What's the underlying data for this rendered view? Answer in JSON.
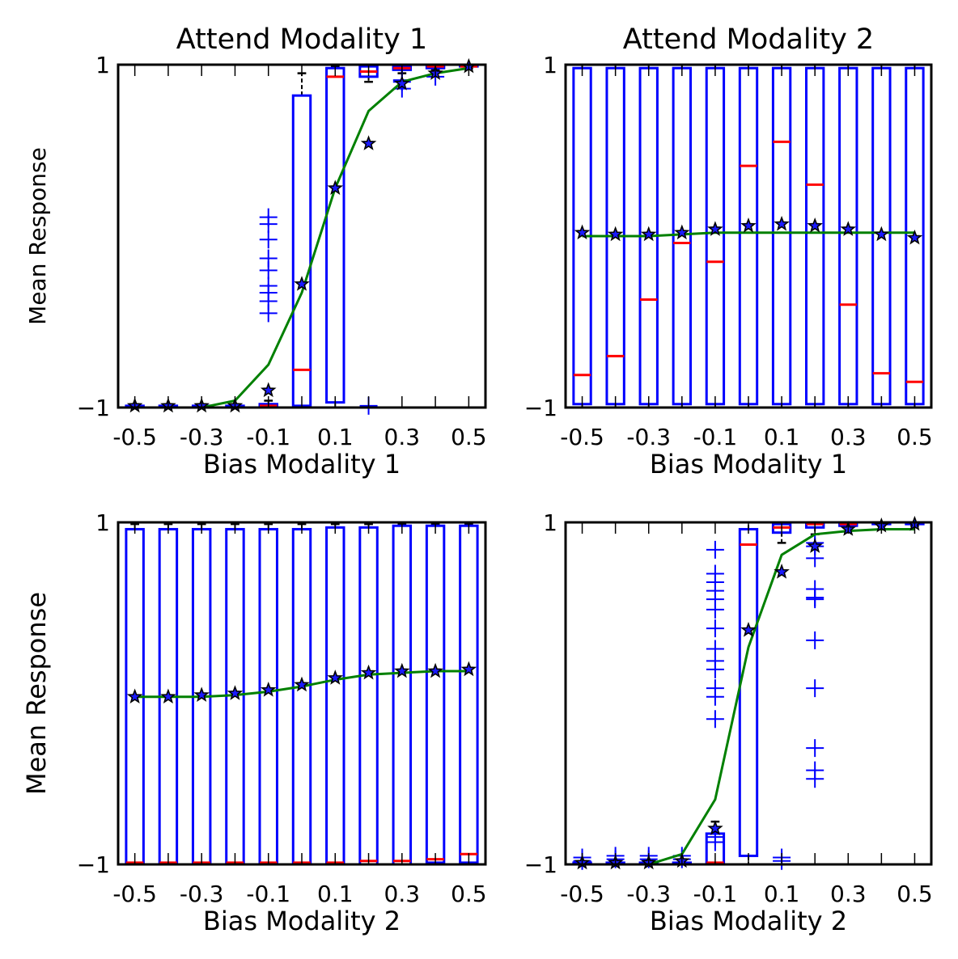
{
  "figure": {
    "colors": {
      "box": "#0000ff",
      "median": "#ff0000",
      "mean_marker": "#000000",
      "fit_line": "#008000",
      "axes": "#000000"
    }
  },
  "chart_data": [
    {
      "type": "box",
      "title": "Attend Modality 1",
      "xlabel": "Bias Modality 1",
      "ylabel": "Mean Response",
      "ylim": [
        -1,
        1
      ],
      "xlim": [
        -0.55,
        0.55
      ],
      "ytick_labels": [
        "−1",
        "1"
      ],
      "xtick_labels": [
        "-0.5",
        "-0.3",
        "-0.1",
        "0.1",
        "0.3",
        "0.5"
      ],
      "x": [
        -0.5,
        -0.4,
        -0.3,
        -0.2,
        -0.1,
        0.0,
        0.1,
        0.2,
        0.3,
        0.4,
        0.5
      ],
      "boxes": [
        {
          "x": -0.5,
          "q1": -1.0,
          "q3": -0.99,
          "median": -1.0,
          "whisker_low": -1.0,
          "whisker_high": -0.99
        },
        {
          "x": -0.4,
          "q1": -1.0,
          "q3": -0.99,
          "median": -1.0,
          "whisker_low": -1.0,
          "whisker_high": -0.99
        },
        {
          "x": -0.3,
          "q1": -1.0,
          "q3": -0.99,
          "median": -1.0,
          "whisker_low": -1.0,
          "whisker_high": -0.99
        },
        {
          "x": -0.2,
          "q1": -1.0,
          "q3": -0.99,
          "median": -1.0,
          "whisker_low": -1.0,
          "whisker_high": -0.99
        },
        {
          "x": -0.1,
          "q1": -1.0,
          "q3": -0.98,
          "median": -0.99,
          "whisker_low": -1.0,
          "whisker_high": -0.96
        },
        {
          "x": 0.0,
          "q1": -0.99,
          "q3": 0.82,
          "median": -0.78,
          "whisker_low": -1.0,
          "whisker_high": 0.95
        },
        {
          "x": 0.1,
          "q1": -0.97,
          "q3": 0.98,
          "median": 0.93,
          "whisker_low": -1.0,
          "whisker_high": 0.99
        },
        {
          "x": 0.2,
          "q1": 0.93,
          "q3": 0.99,
          "median": 0.96,
          "whisker_low": 0.9,
          "whisker_high": 1.0
        },
        {
          "x": 0.3,
          "q1": 0.97,
          "q3": 0.99,
          "median": 0.98,
          "whisker_low": 0.95,
          "whisker_high": 1.0
        },
        {
          "x": 0.4,
          "q1": 0.98,
          "q3": 1.0,
          "median": 0.99,
          "whisker_low": 0.97,
          "whisker_high": 1.0
        },
        {
          "x": 0.5,
          "q1": 0.99,
          "q3": 1.0,
          "median": 0.99,
          "whisker_low": 0.98,
          "whisker_high": 1.0
        }
      ],
      "outliers": [
        {
          "x": -0.1,
          "y": [
            0.11,
            0.07,
            -0.02,
            -0.13,
            -0.2,
            -0.29,
            -0.33,
            -0.38,
            -0.45
          ]
        },
        {
          "x": 0.2,
          "y": [
            -0.99
          ]
        },
        {
          "x": 0.3,
          "y": [
            0.91,
            0.86,
            0.9
          ]
        },
        {
          "x": 0.4,
          "y": [
            0.93
          ]
        }
      ],
      "means": [
        -0.99,
        -0.99,
        -0.99,
        -0.99,
        -0.9,
        -0.28,
        0.28,
        0.54,
        0.89,
        0.95,
        0.99
      ],
      "fit_line": [
        -1.0,
        -1.0,
        -1.0,
        -0.96,
        -0.75,
        -0.33,
        0.28,
        0.73,
        0.9,
        0.95,
        0.98
      ]
    },
    {
      "type": "box",
      "title": "Attend Modality 2",
      "xlabel": "Bias Modality 1",
      "ylabel": "",
      "ylim": [
        -1,
        1
      ],
      "xlim": [
        -0.55,
        0.55
      ],
      "ytick_labels": [
        "−1",
        "1"
      ],
      "xtick_labels": [
        "-0.5",
        "-0.3",
        "-0.1",
        "0.1",
        "0.3",
        "0.5"
      ],
      "x": [
        -0.5,
        -0.4,
        -0.3,
        -0.2,
        -0.1,
        0.0,
        0.1,
        0.2,
        0.3,
        0.4,
        0.5
      ],
      "boxes": [
        {
          "x": -0.5,
          "q1": -0.98,
          "q3": 0.98,
          "median": -0.81,
          "whisker_low": -1.0,
          "whisker_high": 1.0
        },
        {
          "x": -0.4,
          "q1": -0.98,
          "q3": 0.98,
          "median": -0.7,
          "whisker_low": -1.0,
          "whisker_high": 1.0
        },
        {
          "x": -0.3,
          "q1": -0.98,
          "q3": 0.98,
          "median": -0.37,
          "whisker_low": -1.0,
          "whisker_high": 1.0
        },
        {
          "x": -0.2,
          "q1": -0.98,
          "q3": 0.98,
          "median": -0.04,
          "whisker_low": -1.0,
          "whisker_high": 1.0
        },
        {
          "x": -0.1,
          "q1": -0.98,
          "q3": 0.98,
          "median": -0.15,
          "whisker_low": -1.0,
          "whisker_high": 1.0
        },
        {
          "x": 0.0,
          "q1": -0.98,
          "q3": 0.98,
          "median": 0.41,
          "whisker_low": -1.0,
          "whisker_high": 1.0
        },
        {
          "x": 0.1,
          "q1": -0.98,
          "q3": 0.98,
          "median": 0.55,
          "whisker_low": -1.0,
          "whisker_high": 1.0
        },
        {
          "x": 0.2,
          "q1": -0.98,
          "q3": 0.98,
          "median": 0.3,
          "whisker_low": -1.0,
          "whisker_high": 1.0
        },
        {
          "x": 0.3,
          "q1": -0.98,
          "q3": 0.98,
          "median": -0.4,
          "whisker_low": -1.0,
          "whisker_high": 1.0
        },
        {
          "x": 0.4,
          "q1": -0.98,
          "q3": 0.98,
          "median": -0.8,
          "whisker_low": -1.0,
          "whisker_high": 1.0
        },
        {
          "x": 0.5,
          "q1": -0.98,
          "q3": 0.98,
          "median": -0.85,
          "whisker_low": -1.0,
          "whisker_high": 1.0
        }
      ],
      "outliers": [],
      "means": [
        0.02,
        0.01,
        0.01,
        0.02,
        0.04,
        0.06,
        0.07,
        0.06,
        0.04,
        0.01,
        -0.01
      ],
      "fit_line": [
        0.0,
        0.0,
        0.0,
        0.01,
        0.02,
        0.02,
        0.02,
        0.02,
        0.02,
        0.02,
        0.02
      ]
    },
    {
      "type": "box",
      "title": "",
      "xlabel": "Bias Modality 2",
      "ylabel": "Mean Response",
      "ylim": [
        -1,
        1
      ],
      "xlim": [
        -0.55,
        0.55
      ],
      "ytick_labels": [
        "−1",
        "1"
      ],
      "xtick_labels": [
        "-0.5",
        "-0.3",
        "-0.1",
        "0.1",
        "0.3",
        "0.5"
      ],
      "x": [
        -0.5,
        -0.4,
        -0.3,
        -0.2,
        -0.1,
        0.0,
        0.1,
        0.2,
        0.3,
        0.4,
        0.5
      ],
      "boxes": [
        {
          "x": -0.5,
          "q1": -1.0,
          "q3": 0.96,
          "median": -0.99,
          "whisker_low": -1.0,
          "whisker_high": 0.99
        },
        {
          "x": -0.4,
          "q1": -1.0,
          "q3": 0.96,
          "median": -0.99,
          "whisker_low": -1.0,
          "whisker_high": 0.99
        },
        {
          "x": -0.3,
          "q1": -1.0,
          "q3": 0.96,
          "median": -0.99,
          "whisker_low": -1.0,
          "whisker_high": 0.99
        },
        {
          "x": -0.2,
          "q1": -1.0,
          "q3": 0.96,
          "median": -0.99,
          "whisker_low": -1.0,
          "whisker_high": 0.99
        },
        {
          "x": -0.1,
          "q1": -1.0,
          "q3": 0.96,
          "median": -0.99,
          "whisker_low": -1.0,
          "whisker_high": 0.99
        },
        {
          "x": 0.0,
          "q1": -1.0,
          "q3": 0.96,
          "median": -0.99,
          "whisker_low": -1.0,
          "whisker_high": 0.99
        },
        {
          "x": 0.1,
          "q1": -1.0,
          "q3": 0.97,
          "median": -0.99,
          "whisker_low": -1.0,
          "whisker_high": 0.99
        },
        {
          "x": 0.2,
          "q1": -1.0,
          "q3": 0.97,
          "median": -0.98,
          "whisker_low": -1.0,
          "whisker_high": 0.99
        },
        {
          "x": 0.3,
          "q1": -1.0,
          "q3": 0.98,
          "median": -0.98,
          "whisker_low": -1.0,
          "whisker_high": 0.99
        },
        {
          "x": 0.4,
          "q1": -0.99,
          "q3": 0.98,
          "median": -0.97,
          "whisker_low": -1.0,
          "whisker_high": 0.99
        },
        {
          "x": 0.5,
          "q1": -0.99,
          "q3": 0.98,
          "median": -0.94,
          "whisker_low": -1.0,
          "whisker_high": 0.99
        }
      ],
      "outliers": [],
      "means": [
        -0.02,
        -0.02,
        -0.01,
        0.0,
        0.02,
        0.05,
        0.09,
        0.12,
        0.13,
        0.13,
        0.14
      ],
      "fit_line": [
        -0.02,
        -0.02,
        -0.02,
        -0.01,
        0.01,
        0.04,
        0.08,
        0.11,
        0.12,
        0.13,
        0.13
      ]
    },
    {
      "type": "box",
      "title": "",
      "xlabel": "Bias Modality 2",
      "ylabel": "",
      "ylim": [
        -1,
        1
      ],
      "xlim": [
        -0.55,
        0.55
      ],
      "ytick_labels": [
        "−1",
        "1"
      ],
      "xtick_labels": [
        "-0.5",
        "-0.3",
        "-0.1",
        "0.1",
        "0.3",
        "0.5"
      ],
      "x": [
        -0.5,
        -0.4,
        -0.3,
        -0.2,
        -0.1,
        0.0,
        0.1,
        0.2,
        0.3,
        0.4,
        0.5
      ],
      "boxes": [
        {
          "x": -0.5,
          "q1": -1.0,
          "q3": -0.99,
          "median": -1.0,
          "whisker_low": -1.0,
          "whisker_high": -0.99
        },
        {
          "x": -0.4,
          "q1": -1.0,
          "q3": -0.99,
          "median": -1.0,
          "whisker_low": -1.0,
          "whisker_high": -0.99
        },
        {
          "x": -0.3,
          "q1": -1.0,
          "q3": -0.99,
          "median": -1.0,
          "whisker_low": -1.0,
          "whisker_high": -0.99
        },
        {
          "x": -0.2,
          "q1": -1.0,
          "q3": -0.99,
          "median": -1.0,
          "whisker_low": -1.0,
          "whisker_high": -0.99
        },
        {
          "x": -0.1,
          "q1": -1.0,
          "q3": -0.82,
          "median": -0.99,
          "whisker_low": -1.0,
          "whisker_high": -0.75
        },
        {
          "x": 0.0,
          "q1": -0.95,
          "q3": 0.96,
          "median": 0.87,
          "whisker_low": -1.0,
          "whisker_high": 1.0
        },
        {
          "x": 0.1,
          "q1": 0.94,
          "q3": 0.99,
          "median": 0.97,
          "whisker_low": 0.88,
          "whisker_high": 1.0
        },
        {
          "x": 0.2,
          "q1": 0.97,
          "q3": 1.0,
          "median": 0.99,
          "whisker_low": 0.93,
          "whisker_high": 1.0
        },
        {
          "x": 0.3,
          "q1": 0.98,
          "q3": 1.0,
          "median": 0.99,
          "whisker_low": 0.97,
          "whisker_high": 1.0
        },
        {
          "x": 0.4,
          "q1": 0.99,
          "q3": 1.0,
          "median": 1.0,
          "whisker_low": 0.98,
          "whisker_high": 1.0
        },
        {
          "x": 0.5,
          "q1": 0.99,
          "q3": 1.0,
          "median": 1.0,
          "whisker_low": 0.98,
          "whisker_high": 1.0
        }
      ],
      "outliers": [
        {
          "x": -0.5,
          "y": [
            -0.96,
            -0.98
          ]
        },
        {
          "x": -0.4,
          "y": [
            -0.95,
            -0.97
          ]
        },
        {
          "x": -0.3,
          "y": [
            -0.95,
            -0.97
          ]
        },
        {
          "x": -0.2,
          "y": [
            -0.95,
            -0.97
          ]
        },
        {
          "x": -0.1,
          "y": [
            0.84,
            0.7,
            0.65,
            0.6,
            0.55,
            0.49,
            0.38,
            0.26,
            0.19,
            0.14,
            0.03,
            -0.02,
            -0.15,
            -0.84,
            -0.87
          ]
        },
        {
          "x": 0.1,
          "y": [
            -0.96,
            -0.98
          ]
        },
        {
          "x": 0.2,
          "y": [
            0.88,
            0.86,
            0.79,
            0.61,
            0.55,
            0.56,
            0.31,
            0.03,
            -0.32,
            -0.45,
            -0.5
          ]
        }
      ],
      "means": [
        -0.99,
        -0.99,
        -0.99,
        -0.98,
        -0.79,
        0.37,
        0.71,
        0.86,
        0.96,
        0.98,
        0.99
      ],
      "fit_line": [
        -1.0,
        -1.0,
        -1.0,
        -0.94,
        -0.62,
        0.27,
        0.81,
        0.93,
        0.95,
        0.96,
        0.96
      ]
    }
  ]
}
